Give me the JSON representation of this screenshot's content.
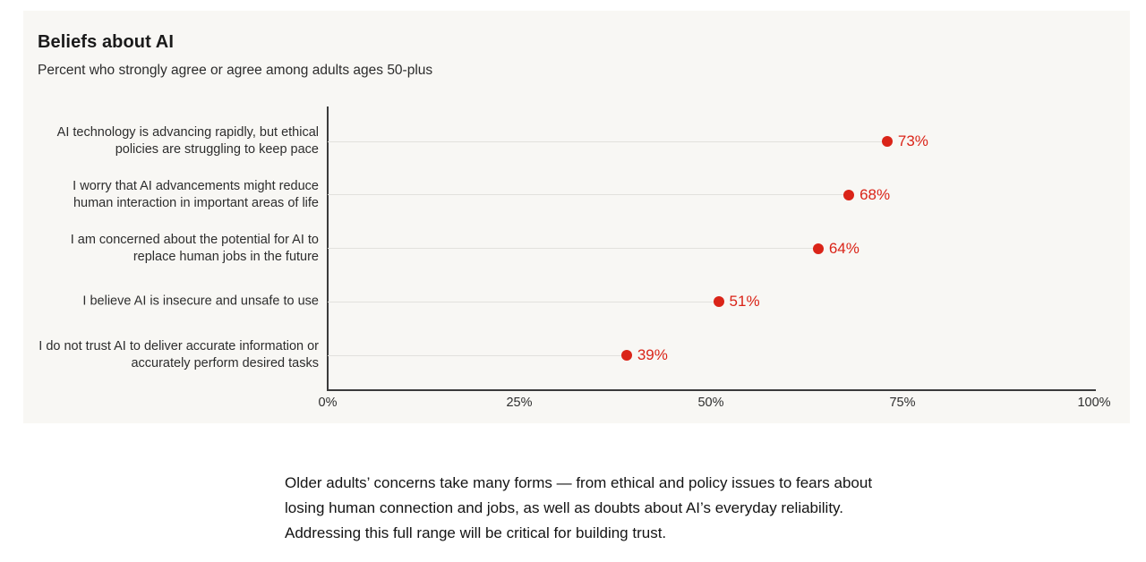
{
  "panel": {
    "background": "#f8f7f4"
  },
  "chart_data": {
    "type": "scatter",
    "variant": "horizontal-dot-plot",
    "title": "Beliefs about AI",
    "subtitle": "Percent who strongly agree or agree among adults ages 50-plus",
    "categories": [
      "AI technology is advancing rapidly, but ethical policies are struggling to keep pace",
      "I worry that AI advancements might reduce human interaction in important areas of life",
      "I am concerned about the potential for AI to replace human jobs in the future",
      "I believe AI is insecure and unsafe to use",
      "I do not trust AI to deliver accurate information or accurately perform desired tasks"
    ],
    "category_lines": [
      [
        "AI technology is advancing rapidly, but ethical",
        "policies are struggling to keep pace"
      ],
      [
        "I worry that AI advancements might reduce",
        "human interaction in important areas of life"
      ],
      [
        "I am concerned about the potential for AI to",
        "replace human jobs in the future"
      ],
      [
        "I believe AI is insecure and unsafe to use"
      ],
      [
        "I do not trust AI to deliver accurate information or",
        "accurately perform desired tasks"
      ]
    ],
    "values": [
      73,
      68,
      64,
      51,
      39
    ],
    "value_labels": [
      "73%",
      "68%",
      "64%",
      "51%",
      "39%"
    ],
    "xlim": [
      0,
      100
    ],
    "x_ticks": [
      0,
      25,
      50,
      75,
      100
    ],
    "x_tick_labels": [
      "0%",
      "25%",
      "50%",
      "75%",
      "100%"
    ],
    "grid": "horizontal leader lines from axis to each dot",
    "legend_position": "none",
    "dot_color": "#da2418",
    "value_label_color": "#da2418"
  },
  "footnote": {
    "lines": [
      "Older adults’ concerns take many forms — from ethical and policy issues to fears about",
      "losing human connection and jobs, as well as doubts about AI’s everyday reliability.",
      "Addressing this full range will be critical for building trust."
    ]
  }
}
